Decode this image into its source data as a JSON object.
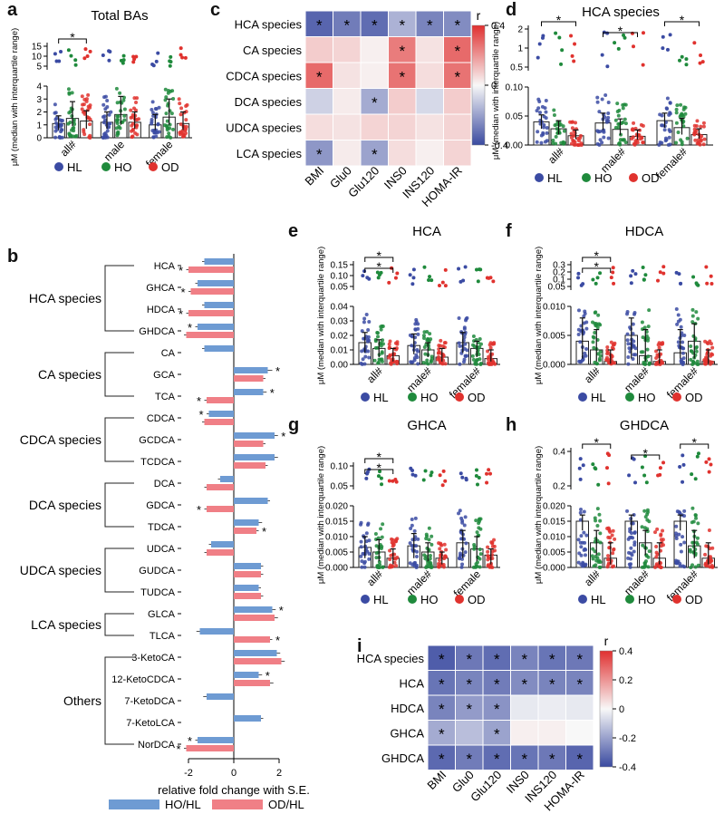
{
  "panel_labels": [
    "a",
    "b",
    "c",
    "d",
    "e",
    "f",
    "g",
    "h",
    "i"
  ],
  "legend": {
    "groups": [
      {
        "label": "HL",
        "color": "#3b4ba3"
      },
      {
        "label": "HO",
        "color": "#1f8a3c"
      },
      {
        "label": "OD",
        "color": "#e0322e"
      }
    ],
    "fold": [
      {
        "label": "HO/HL",
        "color": "#6e9bd3"
      },
      {
        "label": "OD/HL",
        "color": "#f07f86"
      }
    ]
  },
  "colors": {
    "HL": "#3b4ba3",
    "HO": "#1f8a3c",
    "OD": "#e0322e",
    "HO_bar": "#6e9bd3",
    "OD_bar": "#f07f86",
    "heat_neg": "#3a4aa0",
    "heat_pos": "#e03030"
  },
  "chart_data": [
    {
      "id": "a",
      "type": "bar",
      "title": "Total BAs",
      "ylabel": "μM (median with interquartile range)",
      "categories": [
        "all#",
        "male",
        "female"
      ],
      "series": [
        {
          "name": "HL",
          "values": [
            1.1,
            1.2,
            1.0
          ],
          "iqr": [
            [
              0.6,
              1.7
            ],
            [
              0.7,
              2.0
            ],
            [
              0.6,
              1.8
            ]
          ]
        },
        {
          "name": "HO",
          "values": [
            1.5,
            1.8,
            1.6
          ],
          "iqr": [
            [
              0.9,
              2.8
            ],
            [
              1.0,
              3.2
            ],
            [
              1.0,
              3.0
            ]
          ]
        },
        {
          "name": "OD",
          "values": [
            1.3,
            1.2,
            1.1
          ],
          "iqr": [
            [
              0.7,
              2.1
            ],
            [
              0.7,
              2.0
            ],
            [
              0.6,
              2.0
            ]
          ]
        }
      ],
      "ylim": [
        0,
        4
      ],
      "yticks_lower": [
        "0",
        "1",
        "2",
        "3",
        "4"
      ],
      "yticks_upper": [
        "5",
        "10",
        "15"
      ],
      "significance": [
        "*"
      ]
    },
    {
      "id": "b",
      "type": "bar",
      "orientation": "horizontal",
      "xlabel": "relative fold change with S.E.",
      "xlim": [
        -3,
        3
      ],
      "xticks": [
        "-2",
        "0",
        "2"
      ],
      "categories": [
        "HCA",
        "GHCA",
        "HDCA",
        "GHDCA",
        "CA",
        "GCA",
        "TCA",
        "CDCA",
        "GCDCA",
        "TCDCA",
        "DCA",
        "GDCA",
        "TDCA",
        "UDCA",
        "GUDCA",
        "TUDCA",
        "GLCA",
        "TLCA",
        "3-KetoCA",
        "12-KetoCDCA",
        "7-KetoDCA",
        "7-KetoLCA",
        "NorDCA"
      ],
      "groups": [
        {
          "label": "HCA species",
          "from": 0,
          "to": 3
        },
        {
          "label": "CA species",
          "from": 4,
          "to": 6
        },
        {
          "label": "CDCA species",
          "from": 7,
          "to": 9
        },
        {
          "label": "DCA species",
          "from": 10,
          "to": 12
        },
        {
          "label": "UDCA species",
          "from": 13,
          "to": 15
        },
        {
          "label": "LCA species",
          "from": 16,
          "to": 17
        },
        {
          "label": "Others",
          "from": 18,
          "to": 22
        }
      ],
      "series": [
        {
          "name": "HO/HL",
          "values": [
            -1.3,
            -1.6,
            -1.3,
            -1.6,
            -1.3,
            1.5,
            1.3,
            -1.1,
            1.8,
            1.8,
            -0.6,
            1.5,
            1.1,
            -1.0,
            1.2,
            1.1,
            1.7,
            -1.5,
            1.9,
            1.1,
            -1.2,
            1.2,
            -1.6
          ],
          "se": [
            0.1,
            0.1,
            0.1,
            0.1,
            0.1,
            0.2,
            0.15,
            0.1,
            0.15,
            0.15,
            0.1,
            0.1,
            0.15,
            0.1,
            0.1,
            0.1,
            0.15,
            0.15,
            0.15,
            0.15,
            0.15,
            0.1,
            0.1
          ],
          "sig": [
            false,
            false,
            false,
            true,
            false,
            true,
            true,
            true,
            true,
            false,
            false,
            false,
            false,
            false,
            false,
            false,
            true,
            false,
            false,
            true,
            false,
            false,
            true
          ]
        },
        {
          "name": "OD/HL",
          "values": [
            -2.0,
            -1.9,
            -2.0,
            -2.1,
            0.0,
            1.3,
            -1.2,
            -1.3,
            1.3,
            1.4,
            -1.2,
            -1.2,
            1.0,
            -1.2,
            1.2,
            1.2,
            1.8,
            1.6,
            2.1,
            1.6,
            0.0,
            0.0,
            -2.1
          ],
          "se": [
            0.1,
            0.1,
            0.1,
            0.1,
            0.0,
            0.1,
            0.1,
            0.1,
            0.1,
            0.1,
            0.1,
            0.1,
            0.1,
            0.1,
            0.1,
            0.1,
            0.15,
            0.1,
            0.15,
            0.15,
            0.0,
            0.0,
            0.1
          ],
          "sig": [
            true,
            true,
            true,
            false,
            false,
            false,
            true,
            false,
            false,
            false,
            false,
            true,
            true,
            false,
            false,
            false,
            false,
            true,
            false,
            false,
            false,
            false,
            true
          ]
        }
      ]
    },
    {
      "id": "c",
      "type": "heatmap",
      "colorbar_title": "r",
      "colorbar_ticks": [
        "0.4",
        "0",
        "-0.4"
      ],
      "rows": [
        "HCA species",
        "CA species",
        "CDCA species",
        "DCA species",
        "UDCA species",
        "LCA species"
      ],
      "cols": [
        "BMI",
        "Glu0",
        "Glu120",
        "INS0",
        "INS120",
        "HOMA-IR"
      ],
      "values": [
        [
          -0.38,
          -0.32,
          -0.36,
          -0.18,
          -0.3,
          -0.28
        ],
        [
          0.1,
          0.08,
          0.02,
          0.28,
          0.05,
          0.32
        ],
        [
          0.32,
          0.05,
          0.02,
          0.3,
          0.06,
          0.3
        ],
        [
          -0.1,
          0.03,
          -0.2,
          0.1,
          -0.08,
          0.1
        ],
        [
          0.06,
          0.05,
          0.08,
          0.08,
          0.05,
          0.08
        ],
        [
          -0.25,
          0.03,
          -0.22,
          0.06,
          0.02,
          0.08
        ]
      ],
      "significant": [
        [
          true,
          true,
          true,
          true,
          true,
          true
        ],
        [
          false,
          false,
          false,
          true,
          false,
          true
        ],
        [
          true,
          false,
          false,
          true,
          false,
          true
        ],
        [
          false,
          false,
          true,
          false,
          false,
          false
        ],
        [
          false,
          false,
          false,
          false,
          false,
          false
        ],
        [
          true,
          false,
          true,
          false,
          false,
          false
        ]
      ]
    },
    {
      "id": "d",
      "type": "bar",
      "title": "HCA species",
      "ylabel": "μM (median with interquartile range)",
      "categories": [
        "all#",
        "male#",
        "female#"
      ],
      "series": [
        {
          "name": "HL",
          "values": [
            0.04,
            0.038,
            0.042
          ],
          "iqr": [
            [
              0.028,
              0.052
            ],
            [
              0.026,
              0.055
            ],
            [
              0.03,
              0.055
            ]
          ]
        },
        {
          "name": "HO",
          "values": [
            0.028,
            0.027,
            0.03
          ],
          "iqr": [
            [
              0.018,
              0.042
            ],
            [
              0.017,
              0.045
            ],
            [
              0.018,
              0.046
            ]
          ]
        },
        {
          "name": "OD",
          "values": [
            0.016,
            0.015,
            0.018
          ],
          "iqr": [
            [
              0.01,
              0.026
            ],
            [
              0.009,
              0.026
            ],
            [
              0.011,
              0.028
            ]
          ]
        }
      ],
      "ylim": [
        0,
        0.1
      ],
      "yticks_lower": [
        "0.00",
        "0.05",
        "0.10"
      ],
      "yticks_upper": [
        "0.5",
        "1",
        "2"
      ],
      "significance": [
        "*",
        "*",
        "*"
      ]
    },
    {
      "id": "e",
      "type": "bar",
      "title": "HCA",
      "ylabel": "μM (median with interquartile range)",
      "categories": [
        "all#",
        "male#",
        "female#"
      ],
      "series": [
        {
          "name": "HL",
          "values": [
            0.015,
            0.013,
            0.015
          ],
          "iqr": [
            [
              0.008,
              0.022
            ],
            [
              0.007,
              0.021
            ],
            [
              0.008,
              0.022
            ]
          ]
        },
        {
          "name": "HO",
          "values": [
            0.011,
            0.01,
            0.011
          ],
          "iqr": [
            [
              0.005,
              0.017
            ],
            [
              0.005,
              0.015
            ],
            [
              0.005,
              0.016
            ]
          ]
        },
        {
          "name": "OD",
          "values": [
            0.006,
            0.005,
            0.004
          ],
          "iqr": [
            [
              0.002,
              0.011
            ],
            [
              0.002,
              0.011
            ],
            [
              0.002,
              0.01
            ]
          ]
        }
      ],
      "ylim": [
        0,
        0.04
      ],
      "yticks_lower": [
        "0.00",
        "0.01",
        "0.02",
        "0.03",
        "0.04"
      ],
      "yticks_upper": [
        "0.05",
        "0.10",
        "0.15"
      ],
      "significance": [
        "*",
        "*"
      ]
    },
    {
      "id": "f",
      "type": "bar",
      "title": "HDCA",
      "ylabel": "μM (median with interquartile range)",
      "categories": [
        "all#",
        "male#",
        "female#"
      ],
      "series": [
        {
          "name": "HL",
          "values": [
            0.004,
            0.005,
            0.002
          ],
          "iqr": [
            [
              0.001,
              0.008
            ],
            [
              0.001,
              0.008
            ],
            [
              0.001,
              0.006
            ]
          ]
        },
        {
          "name": "HO",
          "values": [
            0.0025,
            0.0015,
            0.004
          ],
          "iqr": [
            [
              0.0005,
              0.006
            ],
            [
              0.0005,
              0.006
            ],
            [
              0.001,
              0.007
            ]
          ]
        },
        {
          "name": "OD",
          "values": [
            0.0005,
            0.0005,
            0.0005
          ],
          "iqr": [
            [
              0.0001,
              0.0025
            ],
            [
              0.0001,
              0.0025
            ],
            [
              0.0001,
              0.0025
            ]
          ]
        }
      ],
      "ylim": [
        0,
        0.01
      ],
      "yticks_lower": [
        "0.000",
        "0.005",
        "0.010"
      ],
      "yticks_upper": [
        "0.05",
        "0.1",
        "0.2",
        "0.3"
      ],
      "significance": [
        "*",
        "*"
      ]
    },
    {
      "id": "g",
      "type": "bar",
      "title": "GHCA",
      "ylabel": "μM (median with interquartile range)",
      "categories": [
        "all#",
        "male#",
        "female"
      ],
      "series": [
        {
          "name": "HL",
          "values": [
            0.0065,
            0.007,
            0.008
          ],
          "iqr": [
            [
              0.003,
              0.01
            ],
            [
              0.003,
              0.011
            ],
            [
              0.003,
              0.012
            ]
          ]
        },
        {
          "name": "HO",
          "values": [
            0.005,
            0.005,
            0.006
          ],
          "iqr": [
            [
              0.002,
              0.009
            ],
            [
              0.002,
              0.008
            ],
            [
              0.002,
              0.01
            ]
          ]
        },
        {
          "name": "OD",
          "values": [
            0.003,
            0.003,
            0.004
          ],
          "iqr": [
            [
              0.001,
              0.006
            ],
            [
              0.001,
              0.005
            ],
            [
              0.001,
              0.006
            ]
          ]
        }
      ],
      "ylim": [
        0,
        0.02
      ],
      "yticks_lower": [
        "0.000",
        "0.005",
        "0.010",
        "0.015",
        "0.020"
      ],
      "yticks_upper": [
        "0.05",
        "0.10"
      ],
      "significance": [
        "*",
        "*"
      ]
    },
    {
      "id": "h",
      "type": "bar",
      "title": "GHDCA",
      "ylabel": "μM (median with interquartile range)",
      "categories": [
        "all#",
        "male#",
        "female#"
      ],
      "series": [
        {
          "name": "HL",
          "values": [
            0.015,
            0.015,
            0.015
          ],
          "iqr": [
            [
              0.012,
              0.017
            ],
            [
              0.012,
              0.017
            ],
            [
              0.012,
              0.017
            ]
          ]
        },
        {
          "name": "HO",
          "values": [
            0.008,
            0.008,
            0.007
          ],
          "iqr": [
            [
              0.004,
              0.012
            ],
            [
              0.004,
              0.012
            ],
            [
              0.003,
              0.012
            ]
          ]
        },
        {
          "name": "OD",
          "values": [
            0.003,
            0.003,
            0.003
          ],
          "iqr": [
            [
              0.001,
              0.008
            ],
            [
              0.001,
              0.008
            ],
            [
              0.001,
              0.008
            ]
          ]
        }
      ],
      "ylim": [
        0,
        0.02
      ],
      "yticks_lower": [
        "0.000",
        "0.005",
        "0.010",
        "0.015",
        "0.020"
      ],
      "yticks_upper": [
        "0.2",
        "0.4"
      ],
      "significance": [
        "*",
        "*",
        "*"
      ]
    },
    {
      "id": "i",
      "type": "heatmap",
      "colorbar_title": "r",
      "colorbar_ticks": [
        "0.4",
        "0.2",
        "0",
        "-0.2",
        "-0.4"
      ],
      "rows": [
        "HCA species",
        "HCA",
        "HDCA",
        "GHCA",
        "GHDCA"
      ],
      "cols": [
        "BMI",
        "Glu0",
        "Glu120",
        "INS0",
        "INS120",
        "HOMA-IR"
      ],
      "values": [
        [
          -0.4,
          -0.33,
          -0.36,
          -0.3,
          -0.34,
          -0.33
        ],
        [
          -0.34,
          -0.3,
          -0.32,
          -0.28,
          -0.3,
          -0.3
        ],
        [
          -0.3,
          -0.24,
          -0.26,
          -0.04,
          -0.03,
          -0.04
        ],
        [
          -0.2,
          -0.15,
          -0.22,
          0.02,
          0.02,
          0.0
        ],
        [
          -0.37,
          -0.32,
          -0.36,
          -0.34,
          -0.33,
          -0.38
        ]
      ],
      "significant": [
        [
          true,
          true,
          true,
          true,
          true,
          true
        ],
        [
          true,
          true,
          true,
          true,
          true,
          true
        ],
        [
          true,
          true,
          true,
          false,
          false,
          false
        ],
        [
          true,
          false,
          true,
          false,
          false,
          false
        ],
        [
          true,
          true,
          true,
          true,
          true,
          true
        ]
      ]
    }
  ]
}
